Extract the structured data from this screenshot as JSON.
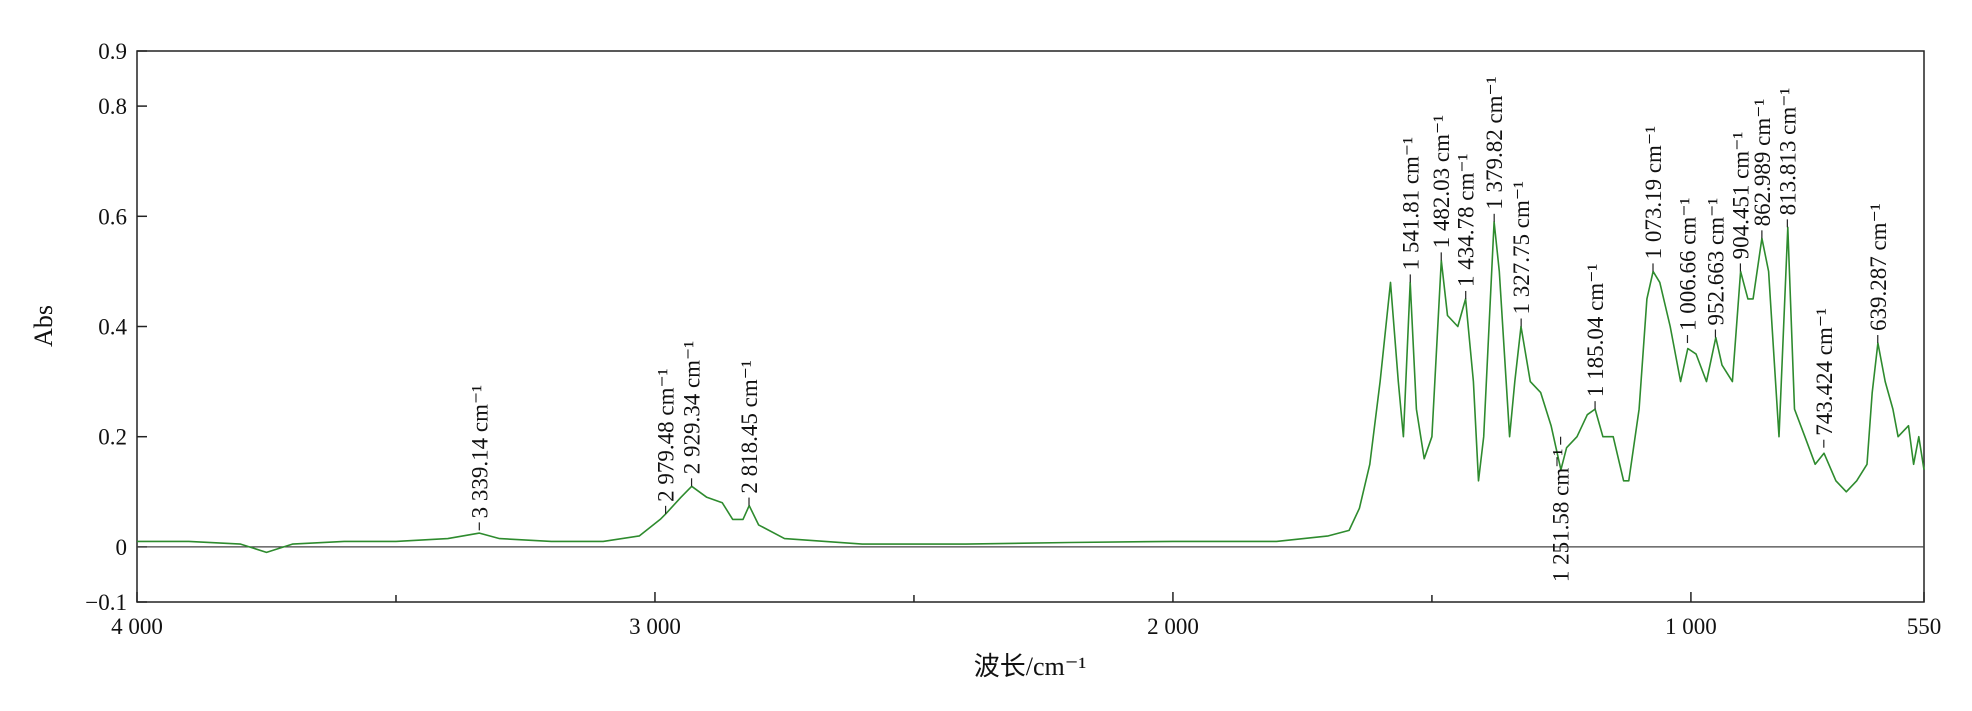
{
  "chart_data": {
    "type": "line",
    "xlabel": "波长/cm⁻¹",
    "ylabel": "Abs",
    "color": "#2e8b2e",
    "xlim": [
      4000,
      550
    ],
    "ylim": [
      -0.1,
      0.9
    ],
    "xticks": [
      {
        "value": 4000,
        "label": "4 000"
      },
      {
        "value": 3000,
        "label": "3 000"
      },
      {
        "value": 2000,
        "label": "2 000"
      },
      {
        "value": 1000,
        "label": "1 000"
      },
      550
    ],
    "xminor_ticks": [
      3500,
      2500,
      1500
    ],
    "yticks": [
      0.9,
      0.8,
      0.6,
      0.4,
      0.2,
      0,
      {
        "value": -0.1,
        "label": "−0.1"
      }
    ],
    "zero_line": true,
    "x": [
      4000,
      3900,
      3800,
      3750,
      3700,
      3600,
      3500,
      3400,
      3339,
      3300,
      3200,
      3100,
      3030,
      2990,
      2979,
      2950,
      2929,
      2900,
      2870,
      2850,
      2830,
      2818,
      2800,
      2750,
      2600,
      2400,
      2200,
      2000,
      1800,
      1700,
      1660,
      1640,
      1620,
      1600,
      1580,
      1565,
      1555,
      1542,
      1530,
      1515,
      1500,
      1482,
      1470,
      1450,
      1435,
      1420,
      1410,
      1400,
      1380,
      1370,
      1350,
      1340,
      1328,
      1310,
      1290,
      1270,
      1251,
      1240,
      1220,
      1200,
      1185,
      1170,
      1150,
      1130,
      1120,
      1100,
      1085,
      1073,
      1060,
      1040,
      1020,
      1006,
      990,
      970,
      952,
      940,
      920,
      904,
      890,
      880,
      863,
      850,
      830,
      813,
      800,
      780,
      760,
      743,
      720,
      700,
      680,
      660,
      650,
      639,
      625,
      610,
      600,
      580,
      570,
      560,
      550
    ],
    "values": [
      0.01,
      0.01,
      0.005,
      -0.01,
      0.005,
      0.01,
      0.01,
      0.015,
      0.025,
      0.015,
      0.01,
      0.01,
      0.02,
      0.05,
      0.06,
      0.09,
      0.11,
      0.09,
      0.08,
      0.05,
      0.05,
      0.075,
      0.04,
      0.015,
      0.005,
      0.005,
      0.008,
      0.01,
      0.01,
      0.02,
      0.03,
      0.07,
      0.15,
      0.3,
      0.48,
      0.3,
      0.2,
      0.48,
      0.25,
      0.16,
      0.2,
      0.52,
      0.42,
      0.4,
      0.45,
      0.3,
      0.12,
      0.2,
      0.59,
      0.5,
      0.2,
      0.3,
      0.4,
      0.3,
      0.28,
      0.22,
      0.14,
      0.18,
      0.2,
      0.24,
      0.25,
      0.2,
      0.2,
      0.12,
      0.12,
      0.25,
      0.45,
      0.5,
      0.48,
      0.4,
      0.3,
      0.36,
      0.35,
      0.3,
      0.38,
      0.33,
      0.3,
      0.5,
      0.45,
      0.45,
      0.56,
      0.5,
      0.2,
      0.58,
      0.25,
      0.2,
      0.15,
      0.17,
      0.12,
      0.1,
      0.12,
      0.15,
      0.28,
      0.37,
      0.3,
      0.25,
      0.2,
      0.22,
      0.15,
      0.2,
      0.14
    ],
    "annotations": [
      {
        "x": 3339.14,
        "y": 0.03,
        "label": "3 339.14 cm⁻¹"
      },
      {
        "x": 2979.48,
        "y": 0.06,
        "label": "2 979.48 cm⁻¹"
      },
      {
        "x": 2929.34,
        "y": 0.11,
        "label": "2 929.34 cm⁻¹"
      },
      {
        "x": 2818.45,
        "y": 0.075,
        "label": "2 818.45 cm⁻¹"
      },
      {
        "x": 1541.81,
        "y": 0.48,
        "label": "1 541.81 cm⁻¹"
      },
      {
        "x": 1482.03,
        "y": 0.52,
        "label": "1 482.03 cm⁻¹"
      },
      {
        "x": 1434.78,
        "y": 0.45,
        "label": "1 434.78 cm⁻¹"
      },
      {
        "x": 1379.82,
        "y": 0.59,
        "label": "1 379.82 cm⁻¹"
      },
      {
        "x": 1327.75,
        "y": 0.4,
        "label": "1 327.75 cm⁻¹"
      },
      {
        "x": 1251.58,
        "y": 0.2,
        "label": "1 251.58 cm⁻¹",
        "placement": "below"
      },
      {
        "x": 1185.04,
        "y": 0.25,
        "label": "1 185.04 cm⁻¹"
      },
      {
        "x": 1073.19,
        "y": 0.5,
        "label": "1 073.19 cm⁻¹"
      },
      {
        "x": 1006.66,
        "y": 0.37,
        "label": "1 006.66 cm⁻¹"
      },
      {
        "x": 952.663,
        "y": 0.38,
        "label": "952.663 cm⁻¹"
      },
      {
        "x": 904.451,
        "y": 0.5,
        "label": "904.451 cm⁻¹"
      },
      {
        "x": 862.989,
        "y": 0.56,
        "label": "862.989 cm⁻¹"
      },
      {
        "x": 813.813,
        "y": 0.58,
        "label": "813.813 cm⁻¹"
      },
      {
        "x": 743.424,
        "y": 0.18,
        "label": "743.424 cm⁻¹"
      },
      {
        "x": 639.287,
        "y": 0.37,
        "label": "639.287 cm⁻¹"
      }
    ]
  }
}
